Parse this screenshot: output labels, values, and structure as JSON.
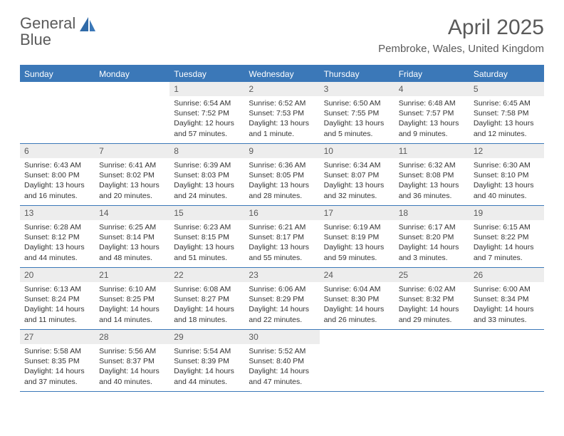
{
  "logo": {
    "text1": "General",
    "text2": "Blue"
  },
  "title": "April 2025",
  "location": "Pembroke, Wales, United Kingdom",
  "dayNames": [
    "Sunday",
    "Monday",
    "Tuesday",
    "Wednesday",
    "Thursday",
    "Friday",
    "Saturday"
  ],
  "colors": {
    "brand": "#3b78b8",
    "headerText": "#ffffff",
    "bodyText": "#333333",
    "muted": "#5a5a5a",
    "daynumBg": "#ededed",
    "pageBg": "#ffffff"
  },
  "weeks": [
    [
      null,
      null,
      {
        "n": "1",
        "sr": "Sunrise: 6:54 AM",
        "ss": "Sunset: 7:52 PM",
        "d1": "Daylight: 12 hours",
        "d2": "and 57 minutes."
      },
      {
        "n": "2",
        "sr": "Sunrise: 6:52 AM",
        "ss": "Sunset: 7:53 PM",
        "d1": "Daylight: 13 hours",
        "d2": "and 1 minute."
      },
      {
        "n": "3",
        "sr": "Sunrise: 6:50 AM",
        "ss": "Sunset: 7:55 PM",
        "d1": "Daylight: 13 hours",
        "d2": "and 5 minutes."
      },
      {
        "n": "4",
        "sr": "Sunrise: 6:48 AM",
        "ss": "Sunset: 7:57 PM",
        "d1": "Daylight: 13 hours",
        "d2": "and 9 minutes."
      },
      {
        "n": "5",
        "sr": "Sunrise: 6:45 AM",
        "ss": "Sunset: 7:58 PM",
        "d1": "Daylight: 13 hours",
        "d2": "and 12 minutes."
      }
    ],
    [
      {
        "n": "6",
        "sr": "Sunrise: 6:43 AM",
        "ss": "Sunset: 8:00 PM",
        "d1": "Daylight: 13 hours",
        "d2": "and 16 minutes."
      },
      {
        "n": "7",
        "sr": "Sunrise: 6:41 AM",
        "ss": "Sunset: 8:02 PM",
        "d1": "Daylight: 13 hours",
        "d2": "and 20 minutes."
      },
      {
        "n": "8",
        "sr": "Sunrise: 6:39 AM",
        "ss": "Sunset: 8:03 PM",
        "d1": "Daylight: 13 hours",
        "d2": "and 24 minutes."
      },
      {
        "n": "9",
        "sr": "Sunrise: 6:36 AM",
        "ss": "Sunset: 8:05 PM",
        "d1": "Daylight: 13 hours",
        "d2": "and 28 minutes."
      },
      {
        "n": "10",
        "sr": "Sunrise: 6:34 AM",
        "ss": "Sunset: 8:07 PM",
        "d1": "Daylight: 13 hours",
        "d2": "and 32 minutes."
      },
      {
        "n": "11",
        "sr": "Sunrise: 6:32 AM",
        "ss": "Sunset: 8:08 PM",
        "d1": "Daylight: 13 hours",
        "d2": "and 36 minutes."
      },
      {
        "n": "12",
        "sr": "Sunrise: 6:30 AM",
        "ss": "Sunset: 8:10 PM",
        "d1": "Daylight: 13 hours",
        "d2": "and 40 minutes."
      }
    ],
    [
      {
        "n": "13",
        "sr": "Sunrise: 6:28 AM",
        "ss": "Sunset: 8:12 PM",
        "d1": "Daylight: 13 hours",
        "d2": "and 44 minutes."
      },
      {
        "n": "14",
        "sr": "Sunrise: 6:25 AM",
        "ss": "Sunset: 8:14 PM",
        "d1": "Daylight: 13 hours",
        "d2": "and 48 minutes."
      },
      {
        "n": "15",
        "sr": "Sunrise: 6:23 AM",
        "ss": "Sunset: 8:15 PM",
        "d1": "Daylight: 13 hours",
        "d2": "and 51 minutes."
      },
      {
        "n": "16",
        "sr": "Sunrise: 6:21 AM",
        "ss": "Sunset: 8:17 PM",
        "d1": "Daylight: 13 hours",
        "d2": "and 55 minutes."
      },
      {
        "n": "17",
        "sr": "Sunrise: 6:19 AM",
        "ss": "Sunset: 8:19 PM",
        "d1": "Daylight: 13 hours",
        "d2": "and 59 minutes."
      },
      {
        "n": "18",
        "sr": "Sunrise: 6:17 AM",
        "ss": "Sunset: 8:20 PM",
        "d1": "Daylight: 14 hours",
        "d2": "and 3 minutes."
      },
      {
        "n": "19",
        "sr": "Sunrise: 6:15 AM",
        "ss": "Sunset: 8:22 PM",
        "d1": "Daylight: 14 hours",
        "d2": "and 7 minutes."
      }
    ],
    [
      {
        "n": "20",
        "sr": "Sunrise: 6:13 AM",
        "ss": "Sunset: 8:24 PM",
        "d1": "Daylight: 14 hours",
        "d2": "and 11 minutes."
      },
      {
        "n": "21",
        "sr": "Sunrise: 6:10 AM",
        "ss": "Sunset: 8:25 PM",
        "d1": "Daylight: 14 hours",
        "d2": "and 14 minutes."
      },
      {
        "n": "22",
        "sr": "Sunrise: 6:08 AM",
        "ss": "Sunset: 8:27 PM",
        "d1": "Daylight: 14 hours",
        "d2": "and 18 minutes."
      },
      {
        "n": "23",
        "sr": "Sunrise: 6:06 AM",
        "ss": "Sunset: 8:29 PM",
        "d1": "Daylight: 14 hours",
        "d2": "and 22 minutes."
      },
      {
        "n": "24",
        "sr": "Sunrise: 6:04 AM",
        "ss": "Sunset: 8:30 PM",
        "d1": "Daylight: 14 hours",
        "d2": "and 26 minutes."
      },
      {
        "n": "25",
        "sr": "Sunrise: 6:02 AM",
        "ss": "Sunset: 8:32 PM",
        "d1": "Daylight: 14 hours",
        "d2": "and 29 minutes."
      },
      {
        "n": "26",
        "sr": "Sunrise: 6:00 AM",
        "ss": "Sunset: 8:34 PM",
        "d1": "Daylight: 14 hours",
        "d2": "and 33 minutes."
      }
    ],
    [
      {
        "n": "27",
        "sr": "Sunrise: 5:58 AM",
        "ss": "Sunset: 8:35 PM",
        "d1": "Daylight: 14 hours",
        "d2": "and 37 minutes."
      },
      {
        "n": "28",
        "sr": "Sunrise: 5:56 AM",
        "ss": "Sunset: 8:37 PM",
        "d1": "Daylight: 14 hours",
        "d2": "and 40 minutes."
      },
      {
        "n": "29",
        "sr": "Sunrise: 5:54 AM",
        "ss": "Sunset: 8:39 PM",
        "d1": "Daylight: 14 hours",
        "d2": "and 44 minutes."
      },
      {
        "n": "30",
        "sr": "Sunrise: 5:52 AM",
        "ss": "Sunset: 8:40 PM",
        "d1": "Daylight: 14 hours",
        "d2": "and 47 minutes."
      },
      null,
      null,
      null
    ]
  ]
}
